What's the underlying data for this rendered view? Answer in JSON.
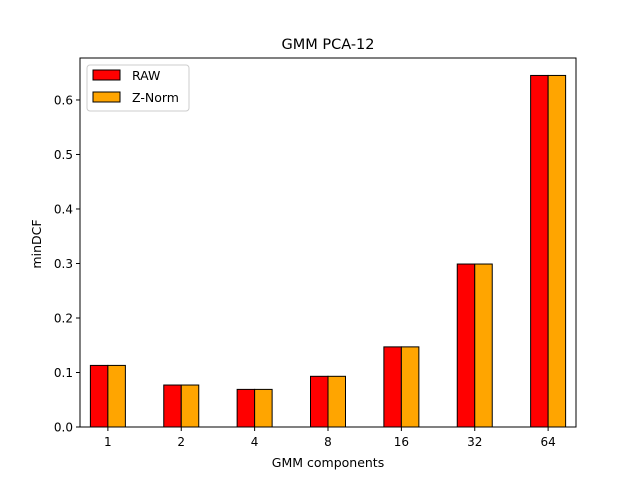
{
  "chart_data": {
    "type": "bar",
    "title": "GMM PCA-12",
    "xlabel": "GMM components",
    "ylabel": "minDCF",
    "categories": [
      "1",
      "2",
      "4",
      "8",
      "16",
      "32",
      "64"
    ],
    "series": [
      {
        "name": "RAW",
        "color": "#ff0000",
        "values": [
          0.113,
          0.077,
          0.069,
          0.093,
          0.147,
          0.299,
          0.645
        ]
      },
      {
        "name": "Z-Norm",
        "color": "#ffa500",
        "values": [
          0.113,
          0.077,
          0.069,
          0.093,
          0.147,
          0.299,
          0.645
        ]
      }
    ],
    "yticks": [
      "0.0",
      "0.1",
      "0.2",
      "0.3",
      "0.4",
      "0.5",
      "0.6"
    ],
    "ylim": [
      0,
      0.677
    ],
    "grid": false,
    "legend_position": "top-left"
  }
}
